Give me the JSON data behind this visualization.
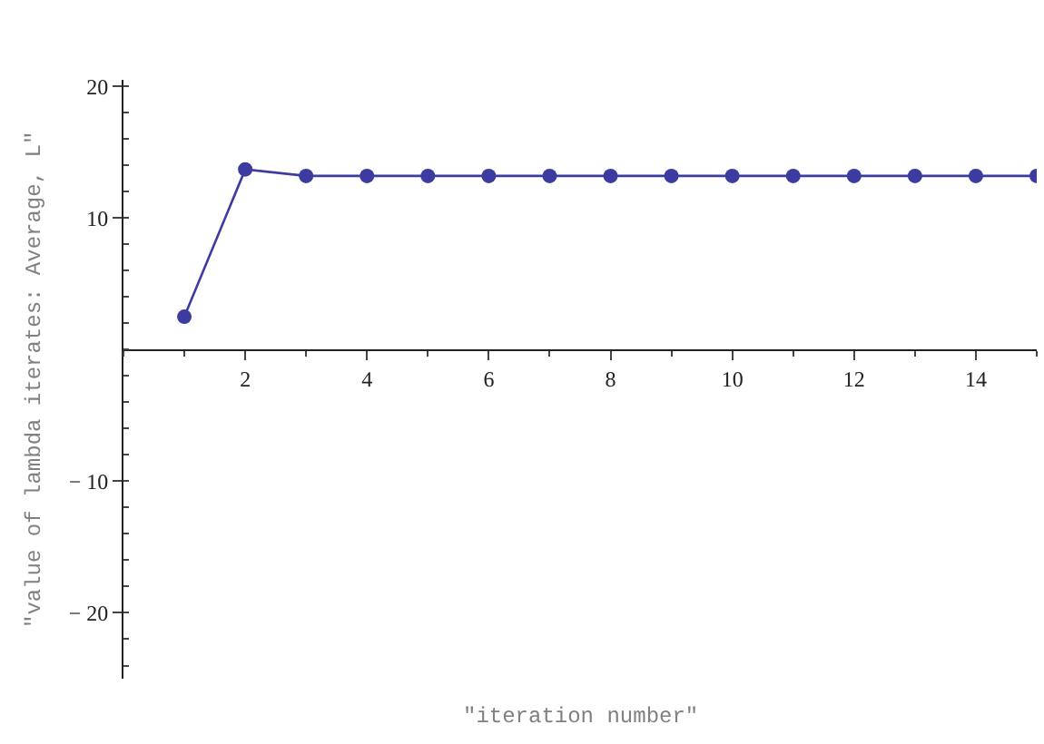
{
  "chart_data": {
    "type": "line",
    "xlabel": "\"iteration number\"",
    "ylabel": "\"value of lambda iterates: Average, L\"",
    "x": [
      1,
      2,
      3,
      4,
      5,
      6,
      7,
      8,
      9,
      10,
      11,
      12,
      13,
      14,
      15
    ],
    "series": [
      {
        "color": "#3b3ba0",
        "values": [
          2.5,
          13.7,
          13.2,
          13.2,
          13.2,
          13.2,
          13.2,
          13.2,
          13.2,
          13.2,
          13.2,
          13.2,
          13.2,
          13.2,
          13.2
        ]
      }
    ],
    "xlim": [
      0,
      15
    ],
    "ylim": [
      -25,
      20.5
    ],
    "xticks": [
      2,
      4,
      6,
      8,
      10,
      12,
      14
    ],
    "yticks": [
      -20,
      -10,
      10,
      20
    ],
    "marker": "circle",
    "line_style": "solid"
  }
}
